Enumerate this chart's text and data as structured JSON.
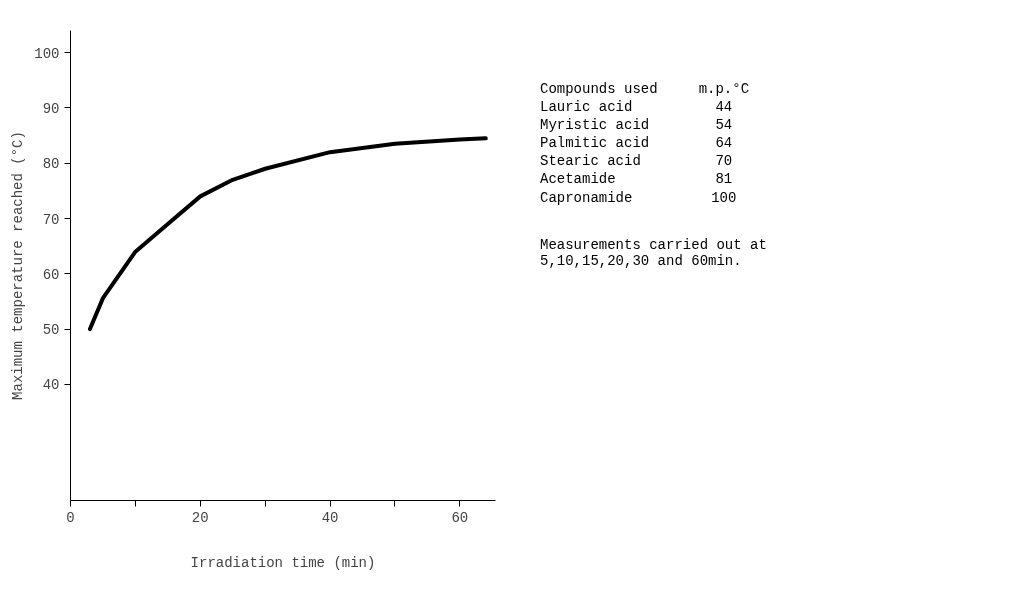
{
  "chart_data": {
    "type": "line",
    "xlabel": "Irradiation time (min)",
    "ylabel": "Maximum temperature reached (°C)",
    "x": [
      3,
      5,
      10,
      15,
      20,
      25,
      30,
      40,
      50,
      60,
      64
    ],
    "values": [
      50,
      55.6,
      64,
      69,
      74,
      77,
      79,
      82,
      83.5,
      84.3,
      84.5
    ],
    "color": "#000000",
    "xlim": [
      0,
      65.5
    ],
    "xticks": [
      0,
      {
        "value": 10,
        "label": null
      },
      20,
      {
        "value": 30,
        "label": null
      },
      40,
      {
        "value": 50,
        "label": null
      },
      60
    ],
    "ylim": [
      19,
      104
    ],
    "yticks": [
      40,
      50,
      60,
      70,
      80,
      90,
      100
    ],
    "grid": false,
    "marker": "none",
    "line_style": "solid",
    "annotations": [
      "Compounds used",
      "m.p.°C",
      "Lauric acid",
      "44",
      "Myristic acid",
      "54",
      "Palmitic acid",
      "64",
      "Stearic acid",
      "70",
      "Acetamide",
      "81",
      "Capronamide",
      "100",
      "Measurements carried out at 5,10,15,20,30 and 60min."
    ]
  }
}
